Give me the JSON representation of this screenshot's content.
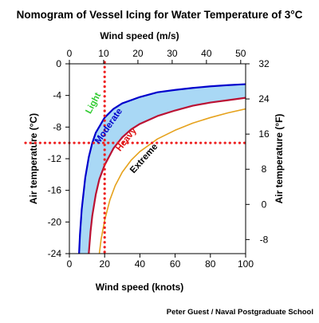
{
  "chart_data": {
    "type": "line",
    "title": "Nomogram of Vessel Icing for Water Temperature of 3°C",
    "xlabel": "Wind speed (knots)",
    "x2label": "Wind speed (m/s)",
    "ylabel": "Air temperature (°C)",
    "y2label": "Air temperature (°F)",
    "xlim": [
      0,
      100
    ],
    "ylim": [
      -24,
      0
    ],
    "x2lim": [
      0,
      51.44
    ],
    "y2lim": [
      -11.2,
      32
    ],
    "x_ticks": [
      0,
      20,
      40,
      60,
      80,
      100
    ],
    "x_tick_labels": [
      "0",
      "20",
      "40",
      "60",
      "80",
      "100"
    ],
    "x2_ticks": [
      0,
      10,
      20,
      30,
      40,
      50
    ],
    "x2_tick_labels": [
      "0",
      "10",
      "20",
      "30",
      "40",
      "50"
    ],
    "y_ticks": [
      0,
      -4,
      -8,
      -12,
      -16,
      -20,
      -24
    ],
    "y_tick_labels": [
      "0",
      "-4",
      "-8",
      "-12",
      "-16",
      "-20",
      "-24"
    ],
    "y2_ticks": [
      32,
      24,
      16,
      8,
      0,
      -8
    ],
    "y2_tick_labels": [
      "32",
      "24",
      "16",
      "8",
      "0",
      "-8"
    ],
    "grid": false,
    "series": [
      {
        "name": "Light",
        "color": "#0000cc",
        "x": [
          5.5,
          6,
          7,
          9,
          11,
          13,
          15,
          20,
          25,
          30,
          40,
          50,
          60,
          70,
          80,
          90,
          100
        ],
        "y": [
          -24,
          -21.6,
          -18.4,
          -14.4,
          -11.8,
          -10,
          -8.7,
          -6.8,
          -5.7,
          -5,
          -4.2,
          -3.6,
          -3.3,
          -3.05,
          -2.85,
          -2.7,
          -2.58
        ]
      },
      {
        "name": "Moderate",
        "color": "#bb1133",
        "x": [
          11,
          12,
          13,
          15,
          17,
          20,
          25,
          30,
          35,
          40,
          50,
          60,
          70,
          80,
          90,
          100
        ],
        "y": [
          -24,
          -21.2,
          -19.2,
          -16.5,
          -14.6,
          -12.8,
          -10.7,
          -9.3,
          -8.3,
          -7.6,
          -6.6,
          -5.9,
          -5.3,
          -4.9,
          -4.6,
          -4.3
        ]
      },
      {
        "name": "Heavy",
        "color": "#e6a21c",
        "x": [
          17,
          18,
          20,
          23,
          26,
          30,
          35,
          40,
          50,
          60,
          70,
          80,
          90,
          100
        ],
        "y": [
          -24,
          -22.2,
          -19.8,
          -17.2,
          -15.4,
          -13.7,
          -12.2,
          -11.1,
          -9.5,
          -8.4,
          -7.5,
          -6.8,
          -6.2,
          -5.7
        ]
      }
    ],
    "zone_labels": [
      {
        "text": "Light",
        "color": "#33cc33"
      },
      {
        "text": "Moderate",
        "color": "#0000cc"
      },
      {
        "text": "Heavy",
        "color": "#dd1111"
      },
      {
        "text": "Extreme",
        "color": "#000000"
      }
    ],
    "shaded_band": {
      "between": [
        "Light",
        "Moderate"
      ],
      "color": "#a9d8f5"
    },
    "reference_lines": {
      "wind_knots": 20,
      "air_temp_c": -10,
      "color": "#ee2222",
      "style": "dotted"
    },
    "annotations": {
      "credit": "Peter Guest / Naval Postgraduate School"
    }
  }
}
